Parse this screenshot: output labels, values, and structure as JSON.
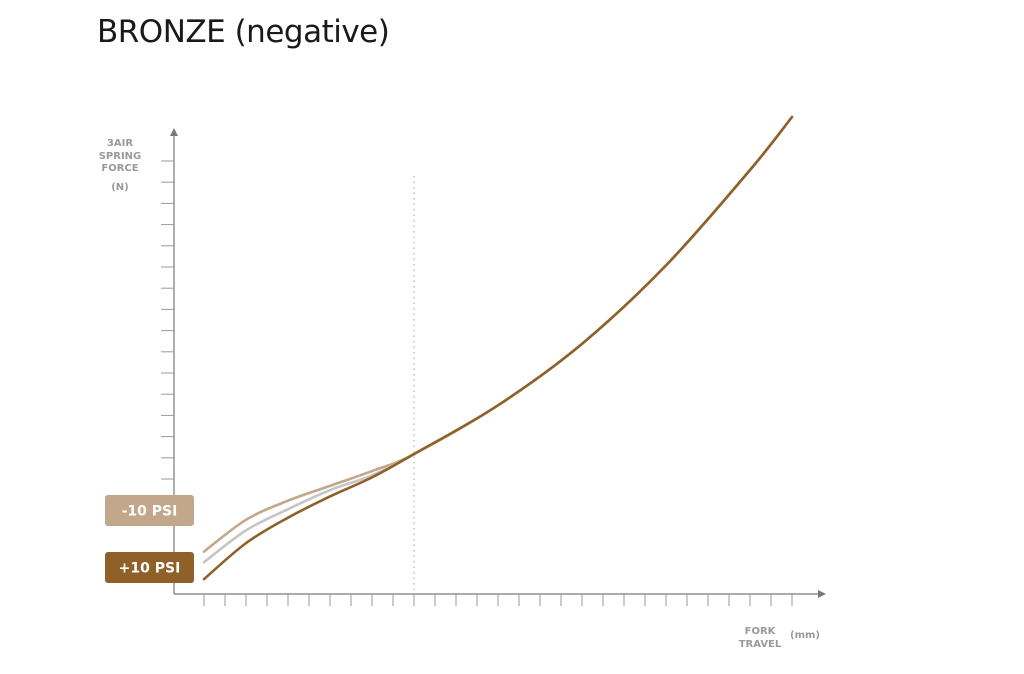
{
  "title": "BRONZE (negative)",
  "chart_data": {
    "type": "line",
    "title": "BRONZE (negative)",
    "ylabel": [
      "3AIR",
      "SPRING",
      "FORCE",
      "(N)"
    ],
    "xlabel": [
      "FORK",
      "TRAVEL"
    ],
    "xunit": "(mm)",
    "x_ticks_count": 29,
    "y_ticks_count": 16,
    "grid": false,
    "reference_line": {
      "x": 10,
      "style": "dotted"
    },
    "xlim": [
      0,
      29.5
    ],
    "ylim": [
      0,
      20.5
    ],
    "series": [
      {
        "name": "-10 PSI",
        "color": "#c2a78a",
        "x": [
          0,
          2,
          4,
          6,
          8,
          10,
          14,
          18,
          22,
          26,
          28
        ],
        "y": [
          2.0,
          3.5,
          4.4,
          5.1,
          5.8,
          6.6,
          8.9,
          11.8,
          15.5,
          20.0,
          22.5
        ]
      },
      {
        "name": "",
        "color": "#c6c6c6",
        "x": [
          0,
          2,
          4,
          6,
          8,
          10,
          14,
          18,
          22,
          26,
          28
        ],
        "y": [
          1.5,
          3.0,
          4.0,
          4.9,
          5.6,
          6.6,
          8.9,
          11.8,
          15.5,
          20.0,
          22.5
        ]
      },
      {
        "name": "+10 PSI",
        "color": "#8f6129",
        "x": [
          0,
          2,
          4,
          6,
          8,
          10,
          14,
          18,
          22,
          26,
          28
        ],
        "y": [
          0.7,
          2.4,
          3.6,
          4.6,
          5.5,
          6.6,
          8.9,
          11.8,
          15.5,
          20.0,
          22.5
        ]
      }
    ],
    "legend": [
      {
        "label": "-10 PSI",
        "color": "#c2a78a",
        "attach_series": 0
      },
      {
        "label": "+10 PSI",
        "color": "#8f6129",
        "attach_series": 2
      }
    ]
  }
}
